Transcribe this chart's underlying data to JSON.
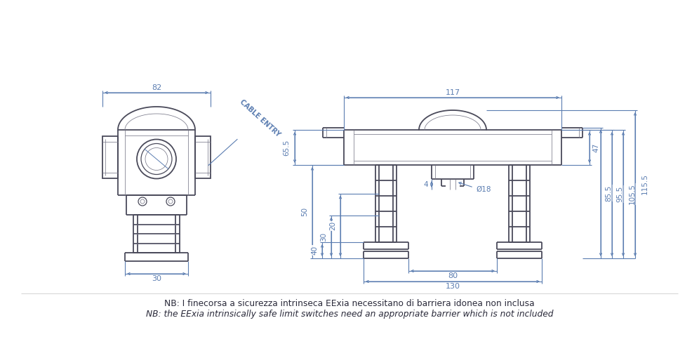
{
  "bg_color": "#ffffff",
  "dim_color": "#5b7db1",
  "draw_color": "#4a4a5a",
  "draw_color_light": "#7a7a8a",
  "text_color": "#2a2a3a",
  "title_line1": "NB: I finecorsa a sicurezza intrinseca EExia necessitano di barriera idonea non inclusa",
  "title_line2": "NB: the EExia intrinsically safe limit switches need an appropriate barrier which is not included",
  "cable_entry_label": "CABLE ENTRY",
  "dim_82": "82",
  "dim_117": "117",
  "dim_30_bottom": "30",
  "dim_65_5": "65.5",
  "dim_50": "50",
  "dim_40": "40",
  "dim_30": "30",
  "dim_20": "20",
  "dim_47": "47",
  "dim_85_5": "85.5",
  "dim_95_5": "95.5",
  "dim_105_5": "105.5",
  "dim_115_5": "115.5",
  "dim_18": "Ø18",
  "dim_4": "4",
  "dim_80": "80",
  "dim_130": "130"
}
